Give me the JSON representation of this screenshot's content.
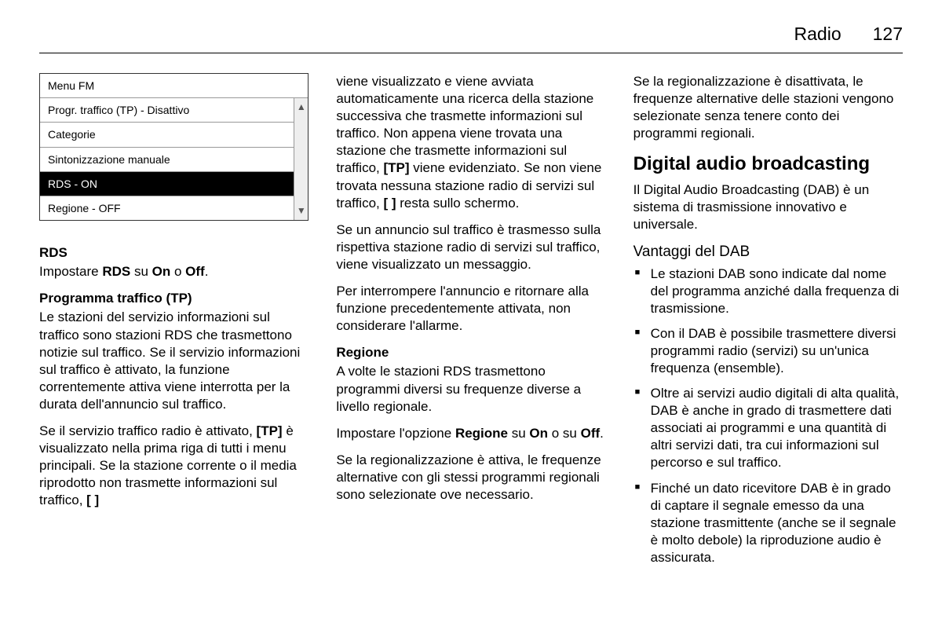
{
  "header": {
    "section": "Radio",
    "page": "127"
  },
  "menu": {
    "title": "Menu FM",
    "items": [
      {
        "label": "Progr. traffico (TP) - Disattivo",
        "selected": false
      },
      {
        "label": "Categorie",
        "selected": false
      },
      {
        "label": "Sintonizzazione manuale",
        "selected": false
      },
      {
        "label": "RDS - ON",
        "selected": true
      },
      {
        "label": "Regione - OFF",
        "selected": false
      }
    ]
  },
  "col1": {
    "rds_heading": "RDS",
    "rds_text_a": "Impostare ",
    "rds_text_b": "RDS",
    "rds_text_c": " su ",
    "rds_text_d": "On",
    "rds_text_e": " o ",
    "rds_text_f": "Off",
    "rds_text_g": ".",
    "tp_heading": "Programma traffico (TP)",
    "tp_p1": "Le stazioni del servizio informazioni sul traffico sono stazioni RDS che trasmettono notizie sul traffico. Se il servizio informazioni sul traffico è attivato, la funzione correntemente attiva viene interrotta per la durata dell'annuncio sul traffico.",
    "tp_p2_a": "Se il servizio traffico radio è attivato, ",
    "tp_p2_b": "[TP]",
    "tp_p2_c": " è visualizzato nella prima riga di tutti i menu principali. Se la stazione corrente o il media riprodotto non trasmette informazioni sul traffico, ",
    "tp_p2_d": "[ ]"
  },
  "col2": {
    "p1_a": "viene visualizzato e viene avviata automaticamente una ricerca della stazione successiva che trasmette informazioni sul traffico. Non appena viene trovata una stazione che trasmette informazioni sul traffico, ",
    "p1_b": "[TP]",
    "p1_c": " viene evidenziato. Se non viene trovata nessuna stazione radio di servizi sul traffico, ",
    "p1_d": "[ ]",
    "p1_e": " resta sullo schermo.",
    "p2": "Se un annuncio sul traffico è trasmesso sulla rispettiva stazione radio di servizi sul traffico, viene visualizzato un messaggio.",
    "p3": "Per interrompere l'annuncio e ritornare alla funzione precedentemente attivata, non considerare l'allarme.",
    "regione_heading": "Regione",
    "regione_p1": "A volte le stazioni RDS trasmettono programmi diversi su frequenze diverse a livello regionale.",
    "regione_p2_a": "Impostare l'opzione ",
    "regione_p2_b": "Regione",
    "regione_p2_c": " su ",
    "regione_p2_d": "On",
    "regione_p2_e": " o su ",
    "regione_p2_f": "Off",
    "regione_p2_g": ".",
    "regione_p3": "Se la regionalizzazione è attiva, le frequenze alternative con gli stessi programmi regionali sono selezionate ove necessario."
  },
  "col3": {
    "p1": "Se la regionalizzazione è disattivata, le frequenze alternative delle stazioni vengono selezionate senza tenere conto dei programmi regionali.",
    "dab_heading": "Digital audio broadcasting",
    "dab_intro": "Il Digital Audio Broadcasting (DAB) è un sistema di trasmissione innovativo e universale.",
    "vantaggi_heading": "Vantaggi del DAB",
    "bullets": [
      "Le stazioni DAB sono indicate dal nome del programma anziché dalla frequenza di trasmissione.",
      "Con il DAB è possibile trasmettere diversi programmi radio (servizi) su un'unica frequenza (ensemble).",
      "Oltre ai servizi audio digitali di alta qualità, DAB è anche in grado di trasmettere dati associati ai programmi e una quantità di altri servizi dati, tra cui informazioni sul percorso e sul traffico.",
      "Finché un dato ricevitore DAB è in grado di captare il segnale emesso da una stazione trasmittente (anche se il segnale è molto debole) la riproduzione audio è assicurata."
    ]
  }
}
